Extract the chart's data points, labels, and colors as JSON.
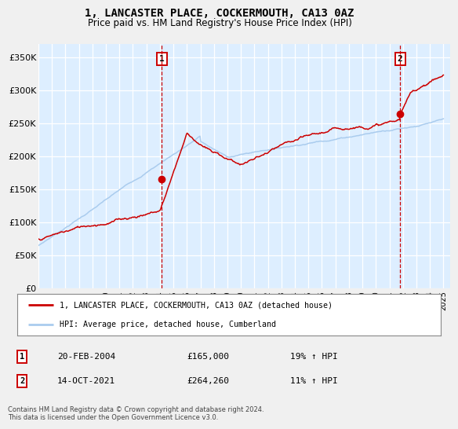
{
  "title": "1, LANCASTER PLACE, COCKERMOUTH, CA13 0AZ",
  "subtitle": "Price paid vs. HM Land Registry's House Price Index (HPI)",
  "ylim": [
    0,
    370000
  ],
  "yticks": [
    0,
    50000,
    100000,
    150000,
    200000,
    250000,
    300000,
    350000
  ],
  "ytick_labels": [
    "£0",
    "£50K",
    "£100K",
    "£150K",
    "£200K",
    "£250K",
    "£300K",
    "£350K"
  ],
  "xlim_start": 1995.0,
  "xlim_end": 2025.5,
  "plot_bg_color": "#ddeeff",
  "grid_color": "#ffffff",
  "fig_bg_color": "#f0f0f0",
  "red_line_color": "#cc0000",
  "blue_line_color": "#aaccee",
  "marker1_date": 2004.13,
  "marker1_price": 165000,
  "marker2_date": 2021.79,
  "marker2_price": 264260,
  "legend_line1": "1, LANCASTER PLACE, COCKERMOUTH, CA13 0AZ (detached house)",
  "legend_line2": "HPI: Average price, detached house, Cumberland",
  "annotation1_date": "20-FEB-2004",
  "annotation1_price": "£165,000",
  "annotation1_hpi": "19% ↑ HPI",
  "annotation2_date": "14-OCT-2021",
  "annotation2_price": "£264,260",
  "annotation2_hpi": "11% ↑ HPI",
  "footer": "Contains HM Land Registry data © Crown copyright and database right 2024.\nThis data is licensed under the Open Government Licence v3.0.",
  "xtick_years": [
    1995,
    1996,
    1997,
    1998,
    1999,
    2000,
    2001,
    2002,
    2003,
    2004,
    2005,
    2006,
    2007,
    2008,
    2009,
    2010,
    2011,
    2012,
    2013,
    2014,
    2015,
    2016,
    2017,
    2018,
    2019,
    2020,
    2021,
    2022,
    2023,
    2024,
    2025
  ]
}
